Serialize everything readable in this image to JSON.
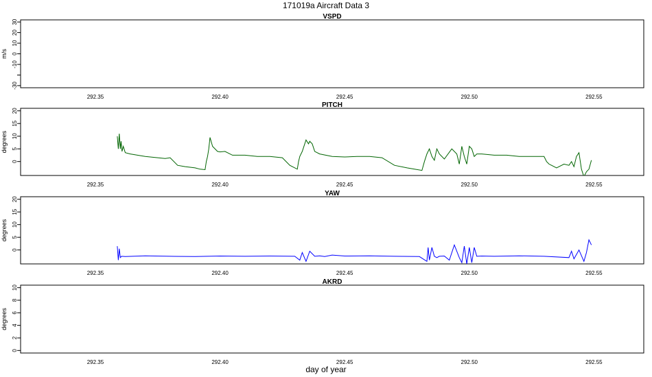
{
  "figure": {
    "title": "171019a   Aircraft Data 3",
    "xlabel": "day of year"
  },
  "chart_data": [
    {
      "type": "line",
      "title": "VSPD",
      "ylabel": "m/s",
      "xlim": [
        292.32,
        292.57
      ],
      "ylim": [
        -32,
        32
      ],
      "x_ticks": [
        292.35,
        292.4,
        292.45,
        292.5,
        292.55
      ],
      "x_tick_labels": [
        "292.35",
        "292.40",
        "292.45",
        "292.50",
        "292.55"
      ],
      "y_ticks": [
        -30,
        -20,
        -10,
        0,
        10,
        20,
        30
      ],
      "y_tick_labels": [
        "-30",
        "",
        "-10",
        "0",
        "10",
        "20",
        "30"
      ],
      "series": []
    },
    {
      "type": "line",
      "title": "PITCH",
      "ylabel": "degrees",
      "xlim": [
        292.32,
        292.57
      ],
      "ylim": [
        -5.5,
        21
      ],
      "x_ticks": [
        292.35,
        292.4,
        292.45,
        292.5,
        292.55
      ],
      "x_tick_labels": [
        "292.35",
        "292.40",
        "292.45",
        "292.50",
        "292.55"
      ],
      "y_ticks": [
        0,
        5,
        10,
        15,
        20
      ],
      "y_tick_labels": [
        "0",
        "5",
        "10",
        "15",
        "20"
      ],
      "series": [
        {
          "color": "#006400",
          "x": [
            292.3588,
            292.3592,
            292.3596,
            292.36,
            292.3603,
            292.3607,
            292.3612,
            292.362,
            292.364,
            292.37,
            292.375,
            292.378,
            292.38,
            292.383,
            292.386,
            292.39,
            292.392,
            292.394,
            292.3945,
            292.395,
            292.3955,
            292.396,
            292.397,
            292.399,
            292.4,
            292.402,
            292.405,
            292.41,
            292.415,
            292.42,
            292.425,
            292.428,
            292.431,
            292.4315,
            292.432,
            292.433,
            292.4345,
            292.4355,
            292.436,
            292.437,
            292.438,
            292.44,
            292.445,
            292.45,
            292.455,
            292.46,
            292.465,
            292.47,
            292.475,
            292.478,
            292.481,
            292.482,
            292.483,
            292.484,
            292.485,
            292.486,
            292.487,
            292.488,
            292.49,
            292.493,
            292.495,
            292.496,
            292.497,
            292.498,
            292.499,
            292.5,
            292.501,
            292.502,
            292.503,
            292.505,
            292.51,
            292.515,
            292.52,
            292.525,
            292.53,
            292.531,
            292.532,
            292.533,
            292.535,
            292.538,
            292.54,
            292.541,
            292.542,
            292.543,
            292.544,
            292.545,
            292.546,
            292.547,
            292.548,
            292.549
          ],
          "values": [
            10,
            5,
            11,
            5,
            8,
            4,
            6,
            3.5,
            3,
            2,
            1.5,
            1.2,
            1.5,
            -1.5,
            -2,
            -2.5,
            -3,
            -3.2,
            0,
            2,
            5,
            9.5,
            6,
            4,
            3.8,
            4,
            2.5,
            2.5,
            2,
            2,
            1.5,
            -1.5,
            -3.0,
            0,
            2,
            4,
            8.5,
            7,
            8,
            7,
            4,
            3,
            2,
            1.8,
            2,
            2,
            1.5,
            -1.5,
            -2.5,
            -3,
            -3.5,
            0,
            3,
            5,
            2,
            0.5,
            5,
            3,
            1,
            5,
            3,
            -1,
            6,
            2,
            -1,
            6,
            5,
            2,
            3,
            3,
            2.5,
            2.5,
            2.0,
            2.0,
            2.0,
            0,
            -1,
            -1.5,
            -2.5,
            -1,
            -1.5,
            0,
            -2,
            2,
            3.5,
            -3,
            -6,
            -4,
            -3,
            0.5
          ]
        }
      ]
    },
    {
      "type": "line",
      "title": "YAW",
      "ylabel": "degrees",
      "xlim": [
        292.32,
        292.57
      ],
      "ylim": [
        -5.5,
        21
      ],
      "x_ticks": [
        292.35,
        292.4,
        292.45,
        292.5,
        292.55
      ],
      "x_tick_labels": [
        "292.35",
        "292.40",
        "292.45",
        "292.50",
        "292.55"
      ],
      "y_ticks": [
        0,
        5,
        10,
        15,
        20
      ],
      "y_tick_labels": [
        "0",
        "5",
        "10",
        "15",
        "20"
      ],
      "series": [
        {
          "color": "#0000ff",
          "x": [
            292.3588,
            292.3592,
            292.3596,
            292.36,
            292.3605,
            292.362,
            292.37,
            292.38,
            292.39,
            292.4,
            292.41,
            292.42,
            292.43,
            292.432,
            292.433,
            292.4345,
            292.436,
            292.438,
            292.44,
            292.442,
            292.445,
            292.45,
            292.46,
            292.47,
            292.48,
            292.483,
            292.4835,
            292.484,
            292.485,
            292.486,
            292.487,
            292.488,
            292.49,
            292.492,
            292.494,
            292.496,
            292.497,
            292.498,
            292.499,
            292.5,
            292.501,
            292.502,
            292.503,
            292.505,
            292.51,
            292.52,
            292.53,
            292.54,
            292.541,
            292.542,
            292.544,
            292.546,
            292.547,
            292.548,
            292.549
          ],
          "values": [
            1.5,
            -4,
            0.5,
            -3,
            -2.5,
            -2.6,
            -2.3,
            -2.5,
            -2.6,
            -2.4,
            -2.5,
            -2.4,
            -2.5,
            -4,
            -1,
            -4.5,
            -0.5,
            -2.5,
            -2.3,
            -2.6,
            -2.0,
            -2.4,
            -2.3,
            -2.5,
            -2.6,
            -4.5,
            1,
            -4,
            1,
            -2.5,
            -3,
            -2.5,
            -2.4,
            -4,
            2,
            -3,
            -5,
            1.5,
            -5.5,
            1,
            -5,
            1,
            -2.5,
            -2.4,
            -2.5,
            -2.3,
            -2.5,
            -3.0,
            -0.5,
            -3.5,
            0,
            -4.5,
            -1,
            4,
            2
          ]
        }
      ]
    },
    {
      "type": "line",
      "title": "AKRD",
      "ylabel": "degrees",
      "xlim": [
        292.32,
        292.57
      ],
      "ylim": [
        -0.4,
        10.4
      ],
      "x_ticks": [
        292.35,
        292.4,
        292.45,
        292.5,
        292.55
      ],
      "x_tick_labels": [
        "292.35",
        "292.40",
        "292.45",
        "292.50",
        "292.55"
      ],
      "y_ticks": [
        0,
        2,
        4,
        6,
        8,
        10
      ],
      "y_tick_labels": [
        "0",
        "2",
        "4",
        "6",
        "8",
        "10"
      ],
      "series": []
    }
  ]
}
